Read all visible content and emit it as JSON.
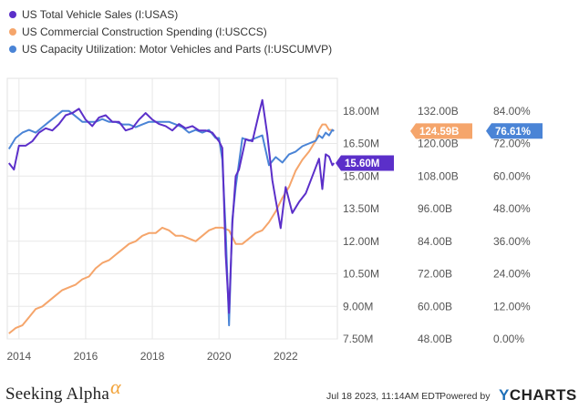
{
  "chart_data": {
    "type": "line",
    "title": "",
    "x_ticks": [
      "2014",
      "2016",
      "2018",
      "2020",
      "2022"
    ],
    "x_tick_years": [
      2014,
      2016,
      2018,
      2020,
      2022
    ],
    "xlim": [
      2013.65,
      2023.55
    ],
    "axes": {
      "sales": {
        "ylim": [
          7.5,
          19.5
        ],
        "ticks": [
          "18.00M",
          "16.50M",
          "15.00M",
          "13.50M",
          "12.00M",
          "10.50M",
          "9.00M",
          "7.50M"
        ],
        "tick_values": [
          18,
          16.5,
          15,
          13.5,
          12,
          10.5,
          9,
          7.5
        ]
      },
      "spending": {
        "ylim": [
          48,
          144
        ],
        "ticks": [
          "132.00B",
          "120.00B",
          "108.00B",
          "96.00B",
          "84.00B",
          "72.00B",
          "60.00B",
          "48.00B"
        ],
        "tick_values": [
          132,
          120,
          108,
          96,
          84,
          72,
          60,
          48
        ]
      },
      "capacity": {
        "ylim": [
          0,
          96
        ],
        "ticks": [
          "84.00%",
          "72.00%",
          "60.00%",
          "48.00%",
          "36.00%",
          "24.00%",
          "12.00%",
          "0.00%"
        ],
        "tick_values": [
          84,
          72,
          60,
          48,
          36,
          24,
          12,
          0
        ]
      }
    },
    "series": [
      {
        "name": "US Total Vehicle Sales (I:USAS)",
        "axis": "sales",
        "color": "#5b2fc9",
        "last_label": "15.60M",
        "last_value": 15.6,
        "x": [
          2013.7,
          2013.85,
          2014.0,
          2014.2,
          2014.4,
          2014.6,
          2014.8,
          2015.0,
          2015.2,
          2015.4,
          2015.6,
          2015.8,
          2016.0,
          2016.2,
          2016.4,
          2016.6,
          2016.8,
          2017.0,
          2017.2,
          2017.4,
          2017.6,
          2017.8,
          2018.0,
          2018.2,
          2018.4,
          2018.6,
          2018.8,
          2019.0,
          2019.2,
          2019.4,
          2019.6,
          2019.8,
          2020.0,
          2020.1,
          2020.2,
          2020.3,
          2020.4,
          2020.5,
          2020.6,
          2020.8,
          2021.0,
          2021.2,
          2021.3,
          2021.45,
          2021.6,
          2021.7,
          2021.85,
          2022.0,
          2022.2,
          2022.4,
          2022.6,
          2022.8,
          2023.0,
          2023.1,
          2023.2,
          2023.3,
          2023.4,
          2023.45
        ],
        "y": [
          15.6,
          15.3,
          16.4,
          16.4,
          16.6,
          17.0,
          17.2,
          17.1,
          17.4,
          17.8,
          17.9,
          18.1,
          17.6,
          17.3,
          17.7,
          17.8,
          17.5,
          17.5,
          17.1,
          17.2,
          17.6,
          17.9,
          17.6,
          17.4,
          17.3,
          17.1,
          17.4,
          17.2,
          17.3,
          17.1,
          17.1,
          17.0,
          16.6,
          16.3,
          11.4,
          8.7,
          12.8,
          15.0,
          15.3,
          16.7,
          16.6,
          17.9,
          18.5,
          16.9,
          14.8,
          13.9,
          12.6,
          14.5,
          13.3,
          13.8,
          14.2,
          15.0,
          15.8,
          14.4,
          16.0,
          15.9,
          15.5,
          15.6
        ]
      },
      {
        "name": "US Commercial Construction Spending (I:USCCS)",
        "axis": "spending",
        "color": "#f5a56b",
        "last_label": "124.59B",
        "last_value": 124.59,
        "x": [
          2013.7,
          2013.9,
          2014.1,
          2014.3,
          2014.5,
          2014.7,
          2014.9,
          2015.1,
          2015.3,
          2015.5,
          2015.7,
          2015.9,
          2016.1,
          2016.3,
          2016.5,
          2016.7,
          2016.9,
          2017.1,
          2017.3,
          2017.5,
          2017.7,
          2017.9,
          2018.1,
          2018.3,
          2018.5,
          2018.7,
          2018.9,
          2019.1,
          2019.3,
          2019.5,
          2019.7,
          2019.9,
          2020.1,
          2020.3,
          2020.5,
          2020.7,
          2020.9,
          2021.1,
          2021.3,
          2021.5,
          2021.7,
          2021.9,
          2022.1,
          2022.3,
          2022.5,
          2022.7,
          2022.9,
          2023.0,
          2023.1,
          2023.2,
          2023.3,
          2023.4,
          2023.45
        ],
        "y": [
          50,
          52,
          53,
          56,
          59,
          60,
          62,
          64,
          66,
          67,
          68,
          70,
          71,
          74,
          76,
          77,
          79,
          81,
          83,
          84,
          86,
          87,
          87,
          89,
          88,
          86,
          86,
          85,
          84,
          86,
          88,
          89,
          89,
          88,
          83,
          83,
          85,
          87,
          88,
          91,
          95,
          100,
          104,
          110,
          114,
          117,
          121,
          125,
          127,
          127,
          125,
          125,
          124.6
        ]
      },
      {
        "name": "US Capacity Utilization: Motor Vehicles and Parts (I:USCUMVP)",
        "axis": "capacity",
        "color": "#4a84d6",
        "last_label": "76.61%",
        "last_value": 76.61,
        "x": [
          2013.7,
          2013.9,
          2014.1,
          2014.3,
          2014.5,
          2014.7,
          2014.9,
          2015.1,
          2015.3,
          2015.5,
          2015.7,
          2015.9,
          2016.1,
          2016.3,
          2016.5,
          2016.7,
          2016.9,
          2017.1,
          2017.3,
          2017.5,
          2017.7,
          2017.9,
          2018.1,
          2018.3,
          2018.5,
          2018.7,
          2018.9,
          2019.1,
          2019.3,
          2019.5,
          2019.7,
          2019.9,
          2020.0,
          2020.1,
          2020.2,
          2020.3,
          2020.4,
          2020.5,
          2020.7,
          2020.9,
          2021.1,
          2021.3,
          2021.5,
          2021.7,
          2021.9,
          2022.1,
          2022.3,
          2022.5,
          2022.7,
          2022.9,
          2023.0,
          2023.1,
          2023.2,
          2023.3,
          2023.4,
          2023.45
        ],
        "y": [
          70,
          74,
          76,
          77,
          76,
          78,
          80,
          82,
          84,
          84,
          82,
          80,
          80,
          80,
          81,
          80,
          80,
          79,
          79,
          78,
          79,
          80,
          80,
          80,
          80,
          79,
          78,
          76,
          77,
          76,
          77,
          74,
          74,
          66,
          40,
          5,
          44,
          56,
          74,
          73,
          74,
          75,
          64,
          67,
          65,
          68,
          69,
          71,
          72,
          73,
          75,
          74,
          76,
          75,
          77,
          76.6
        ]
      }
    ]
  },
  "footer": {
    "brand": "Seeking Alpha",
    "brand_mark": "α",
    "date": "Jul 18 2023, 11:14AM EDT.",
    "powered": "Powered by",
    "ycharts_y": "Y",
    "ycharts_rest": "CHARTS"
  }
}
